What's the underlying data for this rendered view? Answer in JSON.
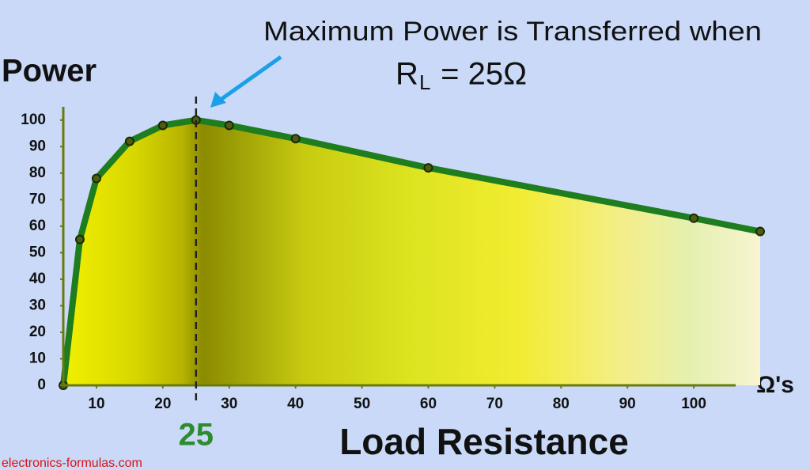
{
  "chart_data": {
    "type": "area",
    "annotation_line1": "Maximum Power is Transferred when",
    "annotation_r": "R",
    "annotation_sub": "L",
    "annotation_rest": " = 25Ω",
    "y_label": "Power",
    "x_label": "Load Resistance",
    "x_unit": "Ω's",
    "peak_x": 25,
    "watermark": "electronics-formulas.com",
    "x": [
      5,
      7.5,
      10,
      15,
      20,
      25,
      30,
      40,
      60,
      100,
      110
    ],
    "values": [
      0,
      55,
      78,
      92,
      98,
      100,
      98,
      93,
      82,
      63,
      58
    ],
    "color": "#1e7d1e",
    "xlim": [
      5,
      110
    ],
    "xticks": [
      10,
      20,
      30,
      40,
      50,
      60,
      70,
      80,
      90,
      100
    ],
    "ylim": [
      0,
      105
    ],
    "yticks": [
      0,
      10,
      20,
      30,
      40,
      50,
      60,
      70,
      80,
      90,
      100
    ]
  }
}
